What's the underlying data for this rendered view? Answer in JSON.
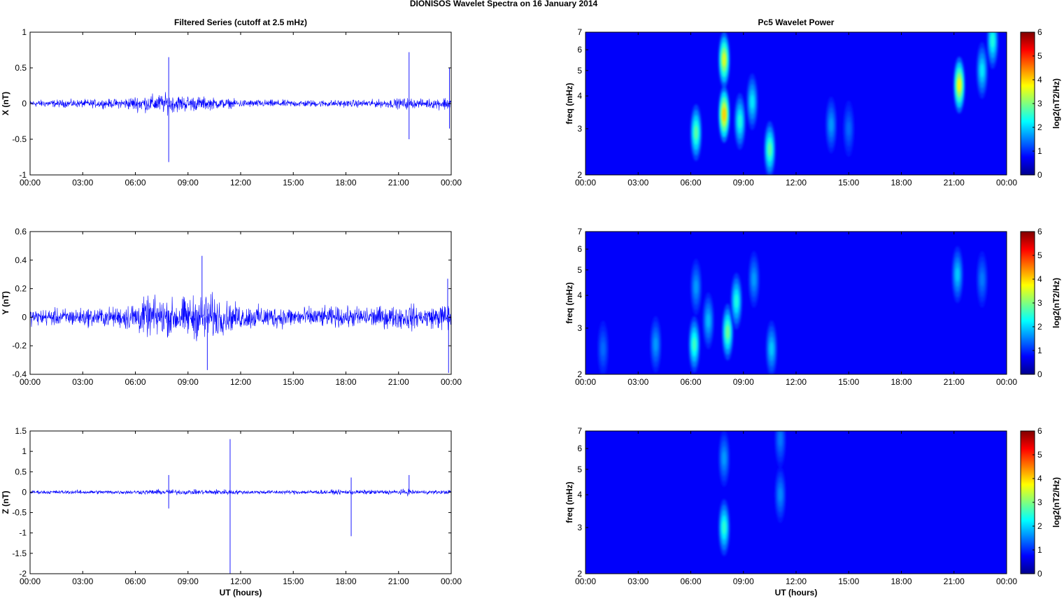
{
  "figure": {
    "title": "DIONISOS Wavelet Spectra on 16 January   2014",
    "left_title": "Filtered Series (cutoff at 2.5 mHz)",
    "right_title": "Pc5 Wavelet Power",
    "xlabel": "UT (hours)",
    "series_color": "#0000ff"
  },
  "chart_data": [
    {
      "type": "line",
      "component": "X",
      "ylabel": "X (nT)",
      "xlim": [
        0,
        24
      ],
      "ylim": [
        -1,
        1
      ],
      "yticks": [
        "-1",
        "-0.5",
        "0",
        "0.5",
        "1"
      ],
      "ytick_values": [
        -1,
        -0.5,
        0,
        0.5,
        1
      ],
      "xticks": [
        "00:00",
        "03:00",
        "06:00",
        "09:00",
        "12:00",
        "15:00",
        "18:00",
        "21:00",
        "00:00"
      ],
      "xtick_values": [
        0,
        3,
        6,
        9,
        12,
        15,
        18,
        21,
        24
      ],
      "envelope": {
        "x": [
          0,
          3,
          5,
          6,
          7,
          7.8,
          8,
          9,
          10,
          11,
          12,
          15,
          18,
          20,
          21,
          21.7,
          22,
          23,
          24
        ],
        "amplitude": [
          0.07,
          0.08,
          0.09,
          0.15,
          0.18,
          0.2,
          0.18,
          0.16,
          0.13,
          0.1,
          0.08,
          0.07,
          0.07,
          0.08,
          0.1,
          0.12,
          0.08,
          0.1,
          0.15
        ]
      },
      "spikes": [
        {
          "x": 7.9,
          "y": 0.65
        },
        {
          "x": 7.9,
          "y": -0.82
        },
        {
          "x": 21.6,
          "y": 0.72
        },
        {
          "x": 21.6,
          "y": -0.5
        },
        {
          "x": 23.9,
          "y": 0.5
        },
        {
          "x": 23.9,
          "y": -0.35
        }
      ]
    },
    {
      "type": "line",
      "component": "Y",
      "ylabel": "Y (nT)",
      "xlim": [
        0,
        24
      ],
      "ylim": [
        -0.4,
        0.6
      ],
      "yticks": [
        "-0.4",
        "-0.2",
        "0",
        "0.2",
        "0.4",
        "0.6"
      ],
      "ytick_values": [
        -0.4,
        -0.2,
        0,
        0.2,
        0.4,
        0.6
      ],
      "xticks": [
        "00:00",
        "03:00",
        "06:00",
        "09:00",
        "12:00",
        "15:00",
        "18:00",
        "21:00",
        "00:00"
      ],
      "xtick_values": [
        0,
        3,
        6,
        9,
        12,
        15,
        18,
        21,
        24
      ],
      "envelope": {
        "x": [
          0,
          3,
          5,
          6,
          7,
          8,
          9,
          10,
          10.5,
          11,
          12,
          15,
          18,
          21,
          21.7,
          22,
          23,
          24
        ],
        "amplitude": [
          0.08,
          0.09,
          0.1,
          0.16,
          0.2,
          0.18,
          0.2,
          0.24,
          0.22,
          0.16,
          0.12,
          0.1,
          0.1,
          0.11,
          0.14,
          0.1,
          0.11,
          0.15
        ]
      },
      "spikes": [
        {
          "x": 9.8,
          "y": 0.43
        },
        {
          "x": 10.1,
          "y": -0.37
        },
        {
          "x": 23.8,
          "y": 0.27
        },
        {
          "x": 23.85,
          "y": -0.39
        }
      ]
    },
    {
      "type": "line",
      "component": "Z",
      "ylabel": "Z (nT)",
      "xlim": [
        0,
        24
      ],
      "ylim": [
        -2,
        1.5
      ],
      "yticks": [
        "-2",
        "-1.5",
        "-1",
        "-0.5",
        "0",
        "0.5",
        "1",
        "1.5"
      ],
      "ytick_values": [
        -2,
        -1.5,
        -1,
        -0.5,
        0,
        0.5,
        1,
        1.5
      ],
      "xticks": [
        "00:00",
        "03:00",
        "06:00",
        "09:00",
        "12:00",
        "15:00",
        "18:00",
        "21:00",
        "00:00"
      ],
      "xtick_values": [
        0,
        3,
        6,
        9,
        12,
        15,
        18,
        21,
        24
      ],
      "envelope": {
        "x": [
          0,
          3,
          6,
          7,
          8,
          9,
          11,
          12,
          15,
          18,
          21,
          21.7,
          22,
          24
        ],
        "amplitude": [
          0.06,
          0.07,
          0.07,
          0.09,
          0.1,
          0.08,
          0.1,
          0.07,
          0.07,
          0.08,
          0.08,
          0.12,
          0.07,
          0.07
        ]
      },
      "spikes": [
        {
          "x": 7.9,
          "y": 0.42
        },
        {
          "x": 7.9,
          "y": -0.4
        },
        {
          "x": 11.4,
          "y": 1.3
        },
        {
          "x": 11.4,
          "y": -2.0
        },
        {
          "x": 18.3,
          "y": 0.36
        },
        {
          "x": 18.3,
          "y": -1.08
        },
        {
          "x": 21.6,
          "y": 0.42
        }
      ]
    },
    {
      "type": "heatmap",
      "component": "X",
      "ylabel": "freq (mHz)",
      "yscale": "log",
      "xlim": [
        0,
        24
      ],
      "ylim": [
        2,
        7
      ],
      "yticks": [
        "2",
        "3",
        "4",
        "5",
        "6",
        "7"
      ],
      "ytick_values": [
        2,
        3,
        4,
        5,
        6,
        7
      ],
      "xticks": [
        "00:00",
        "03:00",
        "06:00",
        "09:00",
        "12:00",
        "15:00",
        "18:00",
        "21:00",
        "00:00"
      ],
      "xtick_values": [
        0,
        3,
        6,
        9,
        12,
        15,
        18,
        21,
        24
      ],
      "colorbar": {
        "label": "log2(nT2/Hz)",
        "ticks": [
          "0",
          "1",
          "2",
          "3",
          "4",
          "5",
          "6"
        ],
        "range": [
          0,
          6
        ]
      },
      "blobs": [
        {
          "t": 6.3,
          "f": 2.9,
          "power": 2.2
        },
        {
          "t": 7.9,
          "f": 3.4,
          "power": 3.5
        },
        {
          "t": 7.9,
          "f": 5.5,
          "power": 3.0
        },
        {
          "t": 8.8,
          "f": 3.2,
          "power": 1.8
        },
        {
          "t": 9.5,
          "f": 3.8,
          "power": 1.5
        },
        {
          "t": 10.5,
          "f": 2.5,
          "power": 2.2
        },
        {
          "t": 14.0,
          "f": 3.1,
          "power": 1.0
        },
        {
          "t": 15.0,
          "f": 3.0,
          "power": 0.7
        },
        {
          "t": 21.3,
          "f": 4.4,
          "power": 3.2
        },
        {
          "t": 22.6,
          "f": 5.0,
          "power": 1.5
        },
        {
          "t": 23.2,
          "f": 6.5,
          "power": 1.8
        }
      ]
    },
    {
      "type": "heatmap",
      "component": "Y",
      "ylabel": "freq (mHz)",
      "yscale": "log",
      "xlim": [
        0,
        24
      ],
      "ylim": [
        2,
        7
      ],
      "yticks": [
        "2",
        "3",
        "4",
        "5",
        "6",
        "7"
      ],
      "ytick_values": [
        2,
        3,
        4,
        5,
        6,
        7
      ],
      "xticks": [
        "00:00",
        "03:00",
        "06:00",
        "09:00",
        "12:00",
        "15:00",
        "18:00",
        "21:00",
        "00:00"
      ],
      "xtick_values": [
        0,
        3,
        6,
        9,
        12,
        15,
        18,
        21,
        24
      ],
      "colorbar": {
        "label": "log2(nT2/Hz)",
        "ticks": [
          "0",
          "1",
          "2",
          "3",
          "4",
          "5",
          "6"
        ],
        "range": [
          0,
          6
        ]
      },
      "blobs": [
        {
          "t": 1.0,
          "f": 2.5,
          "power": 0.7
        },
        {
          "t": 4.0,
          "f": 2.6,
          "power": 1.0
        },
        {
          "t": 6.2,
          "f": 2.6,
          "power": 2.0
        },
        {
          "t": 6.3,
          "f": 4.3,
          "power": 1.0
        },
        {
          "t": 7.0,
          "f": 3.2,
          "power": 1.2
        },
        {
          "t": 8.1,
          "f": 2.9,
          "power": 2.3
        },
        {
          "t": 8.6,
          "f": 3.8,
          "power": 1.8
        },
        {
          "t": 9.6,
          "f": 4.6,
          "power": 1.0
        },
        {
          "t": 10.6,
          "f": 2.5,
          "power": 1.3
        },
        {
          "t": 21.2,
          "f": 4.8,
          "power": 1.3
        },
        {
          "t": 22.6,
          "f": 4.6,
          "power": 0.8
        }
      ]
    },
    {
      "type": "heatmap",
      "component": "Z",
      "ylabel": "freq (mHz)",
      "yscale": "log",
      "xlim": [
        0,
        24
      ],
      "ylim": [
        2,
        7
      ],
      "yticks": [
        "2",
        "3",
        "4",
        "5",
        "6",
        "7"
      ],
      "ytick_values": [
        2,
        3,
        4,
        5,
        6,
        7
      ],
      "xticks": [
        "00:00",
        "03:00",
        "06:00",
        "09:00",
        "12:00",
        "15:00",
        "18:00",
        "21:00",
        "00:00"
      ],
      "xtick_values": [
        0,
        3,
        6,
        9,
        12,
        15,
        18,
        21,
        24
      ],
      "colorbar": {
        "label": "log2(nT2/Hz)",
        "ticks": [
          "0",
          "1",
          "2",
          "3",
          "4",
          "5",
          "6"
        ],
        "range": [
          0,
          6
        ]
      },
      "blobs": [
        {
          "t": 7.9,
          "f": 3.0,
          "power": 1.9
        },
        {
          "t": 7.9,
          "f": 5.5,
          "power": 1.0
        },
        {
          "t": 11.1,
          "f": 4.0,
          "power": 0.9
        },
        {
          "t": 11.1,
          "f": 6.5,
          "power": 0.8
        }
      ]
    }
  ]
}
